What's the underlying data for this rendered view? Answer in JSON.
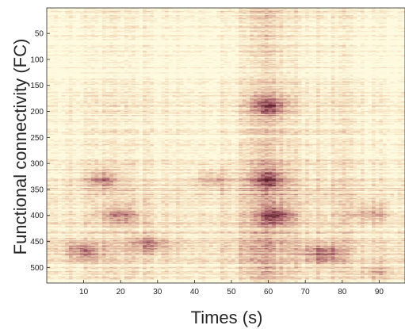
{
  "chart_data": {
    "type": "heatmap",
    "title": "",
    "xlabel": "Times (s)",
    "ylabel": "Functional connectivity (FC)",
    "xlim": [
      0,
      97
    ],
    "ylim": [
      1,
      530
    ],
    "y_inverted": true,
    "x_ticks": [
      10,
      20,
      30,
      40,
      50,
      60,
      70,
      80,
      90
    ],
    "y_ticks": [
      50,
      100,
      150,
      200,
      250,
      300,
      350,
      400,
      450,
      500
    ],
    "x_tick_labels": [
      "10",
      "20",
      "30",
      "40",
      "50",
      "60",
      "70",
      "80",
      "90"
    ],
    "y_tick_labels": [
      "50",
      "100",
      "150",
      "200",
      "250",
      "300",
      "350",
      "400",
      "450",
      "500"
    ],
    "colormap": [
      "#fdfae0",
      "#f4ddbb",
      "#d9aa97",
      "#a8616b",
      "#5e1f2c"
    ],
    "value_range": [
      0,
      1
    ],
    "grid": false,
    "time_profile": [
      [
        0,
        0.3
      ],
      [
        5,
        0.28
      ],
      [
        10,
        0.35
      ],
      [
        15,
        0.4
      ],
      [
        20,
        0.45
      ],
      [
        25,
        0.38
      ],
      [
        30,
        0.3
      ],
      [
        35,
        0.28
      ],
      [
        40,
        0.25
      ],
      [
        45,
        0.32
      ],
      [
        50,
        0.4
      ],
      [
        55,
        0.55
      ],
      [
        58,
        0.68
      ],
      [
        60,
        0.75
      ],
      [
        62,
        0.72
      ],
      [
        65,
        0.55
      ],
      [
        70,
        0.45
      ],
      [
        75,
        0.4
      ],
      [
        80,
        0.45
      ],
      [
        85,
        0.35
      ],
      [
        90,
        0.3
      ],
      [
        97,
        0.28
      ]
    ],
    "connection_profile": [
      [
        1,
        0.28
      ],
      [
        50,
        0.25
      ],
      [
        100,
        0.22
      ],
      [
        150,
        0.32
      ],
      [
        180,
        0.4
      ],
      [
        200,
        0.38
      ],
      [
        250,
        0.3
      ],
      [
        300,
        0.42
      ],
      [
        325,
        0.55
      ],
      [
        350,
        0.55
      ],
      [
        375,
        0.52
      ],
      [
        400,
        0.58
      ],
      [
        425,
        0.48
      ],
      [
        450,
        0.52
      ],
      [
        470,
        0.62
      ],
      [
        500,
        0.45
      ],
      [
        530,
        0.4
      ]
    ],
    "hotspots": [
      {
        "t": 60,
        "c": 190,
        "v": 0.85
      },
      {
        "t": 60,
        "c": 330,
        "v": 0.85
      },
      {
        "t": 62,
        "c": 400,
        "v": 0.85
      },
      {
        "t": 15,
        "c": 330,
        "v": 0.75
      },
      {
        "t": 20,
        "c": 400,
        "v": 0.7
      },
      {
        "t": 75,
        "c": 475,
        "v": 0.8
      },
      {
        "t": 10,
        "c": 470,
        "v": 0.75
      },
      {
        "t": 45,
        "c": 330,
        "v": 0.6
      },
      {
        "t": 28,
        "c": 455,
        "v": 0.65
      },
      {
        "t": 88,
        "c": 395,
        "v": 0.55
      },
      {
        "t": 90,
        "c": 510,
        "v": 0.55
      }
    ]
  }
}
